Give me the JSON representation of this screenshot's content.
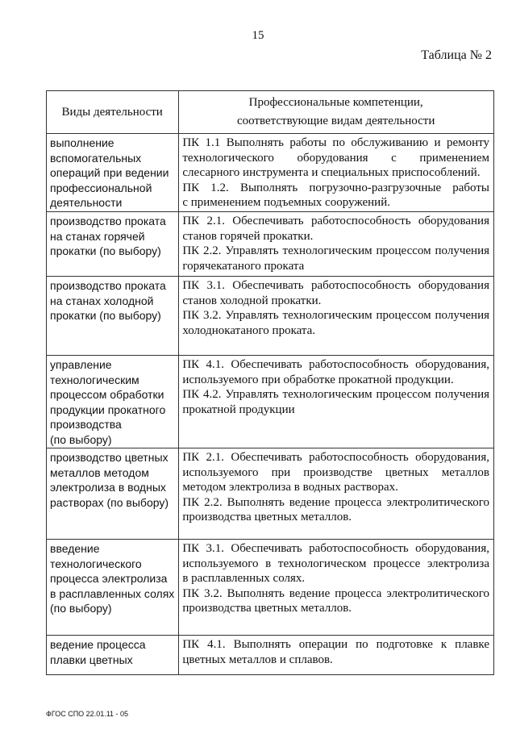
{
  "page_number": "15",
  "table_label": "Таблица № 2",
  "header": {
    "col1": "Виды деятельности",
    "col2_lines": [
      "Профессиональные компетенции,",
      "соответствующие видам деятельности"
    ]
  },
  "rows": [
    {
      "activity": [
        "выполнение",
        "вспомогательных",
        "операций при ведении",
        "профессиональной",
        "деятельности"
      ],
      "competences": [
        [
          "ПК 1.1 Выполнять работы по обслуживанию и ремонту",
          "технологического оборудования с применением",
          "слесарного инструмента и специальных приспособлений."
        ],
        [
          "ПК 1.2. Выполнять погрузочно-разгрузочные работы",
          "с применением подъемных сооружений."
        ]
      ]
    },
    {
      "activity": [
        "производство проката",
        "на станах горячей",
        "прокатки (по выбору)"
      ],
      "competences": [
        [
          "ПК 2.1. Обеспечивать работоспособность оборудования",
          "станов горячей прокатки."
        ],
        [
          "ПК 2.2. Управлять технологическим процессом получения",
          "горячекатаного проката"
        ]
      ]
    },
    {
      "activity": [
        "производство проката",
        "на станах холодной",
        "прокатки (по выбору)"
      ],
      "competences": [
        [
          "ПК 3.1. Обеспечивать работоспособность оборудования",
          "станов холодной прокатки."
        ],
        [
          "ПК 3.2. Управлять технологическим процессом получения",
          "холоднокатаного проката."
        ]
      ]
    },
    {
      "activity": [
        "управление",
        "технологическим",
        "процессом обработки",
        "продукции прокатного",
        "производства",
        "(по выбору)"
      ],
      "competences": [
        [
          "ПК 4.1. Обеспечивать работоспособность оборудования,",
          "используемого при обработке прокатной продукции."
        ],
        [
          "ПК 4.2. Управлять технологическим процессом получения",
          "прокатной продукции"
        ]
      ]
    },
    {
      "activity": [
        "производство цветных",
        "металлов методом",
        "электролиза в водных",
        "растворах (по выбору)"
      ],
      "competences": [
        [
          "ПК 2.1. Обеспечивать работоспособность оборудования,",
          "используемого при производстве цветных металлов",
          "методом электролиза в водных растворах."
        ],
        [
          "ПК 2.2. Выполнять ведение процесса электролитического",
          "производства цветных металлов."
        ]
      ]
    },
    {
      "activity": [
        "введение",
        "технологического",
        "процесса электролиза",
        "в расплавленных солях",
        "(по выбору)"
      ],
      "competences": [
        [
          "ПК 3.1. Обеспечивать работоспособность оборудования,",
          "используемого в технологическом процессе электролиза",
          "в расплавленных солях."
        ],
        [
          "ПК 3.2. Выполнять ведение процесса электролитического",
          "производства цветных металлов."
        ]
      ]
    },
    {
      "activity": [
        "ведение процесса",
        "плавки цветных"
      ],
      "competences": [
        [
          "ПК 4.1. Выполнять операции по подготовке к плавке",
          "цветных металлов и сплавов."
        ]
      ]
    }
  ],
  "footer": "ФГОС СПО 22.01.11 - 05"
}
